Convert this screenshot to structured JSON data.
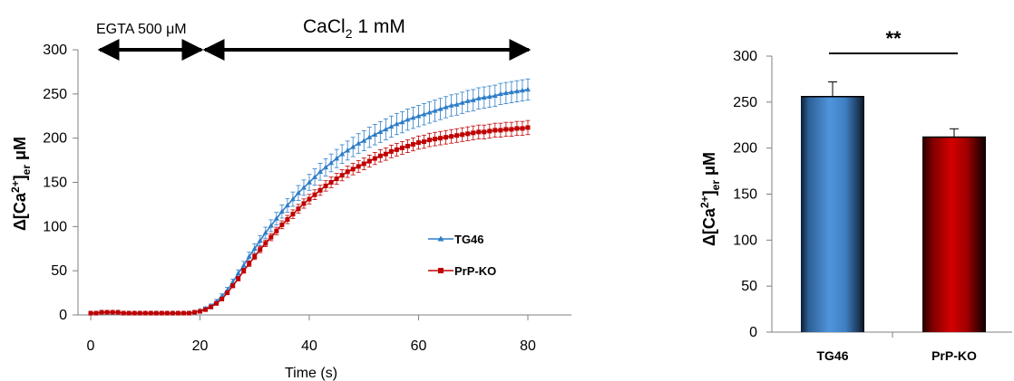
{
  "chart_data": [
    {
      "type": "line",
      "title": "",
      "xlabel": "Time (s)",
      "ylabel": "Δ[Ca²⁺]er μM",
      "ylabel_parts": {
        "main": "Δ[Ca",
        "sup": "2+",
        "close": "]",
        "sub": "er",
        "unit": " μM"
      },
      "xlim": [
        0,
        80
      ],
      "ylim": [
        0,
        300
      ],
      "xticks": [
        "0",
        "20",
        "40",
        "60",
        "80"
      ],
      "yticks": [
        "0",
        "50",
        "100",
        "150",
        "200",
        "250",
        "300"
      ],
      "grid": false,
      "legend_position": "right",
      "annotations": {
        "egta": {
          "label": "EGTA 500 μM",
          "x_range": [
            0,
            20
          ]
        },
        "cacl2": {
          "label_main": "CaCl",
          "label_sub": "2",
          "label_rest": "  1 mM",
          "x_range": [
            20,
            80
          ]
        }
      },
      "series": [
        {
          "name": "TG46",
          "color": "#2E7EC8",
          "marker": "triangle",
          "x": [
            0,
            1,
            2,
            3,
            4,
            5,
            6,
            7,
            8,
            9,
            10,
            11,
            12,
            13,
            14,
            15,
            16,
            17,
            18,
            19,
            20,
            21,
            22,
            23,
            24,
            25,
            26,
            27,
            28,
            29,
            30,
            31,
            32,
            33,
            34,
            35,
            36,
            37,
            38,
            39,
            40,
            41,
            42,
            43,
            44,
            45,
            46,
            47,
            48,
            49,
            50,
            51,
            52,
            53,
            54,
            55,
            56,
            57,
            58,
            59,
            60,
            61,
            62,
            63,
            64,
            65,
            66,
            67,
            68,
            69,
            70,
            71,
            72,
            73,
            74,
            75,
            76,
            77,
            78,
            79,
            80
          ],
          "y": [
            2,
            2,
            3,
            3,
            3,
            3,
            2,
            2,
            2,
            2,
            2,
            2,
            2,
            2,
            2,
            2,
            2,
            2,
            2,
            3,
            5,
            7,
            10,
            15,
            21,
            28,
            37,
            47,
            56,
            66,
            75,
            84,
            93,
            101,
            109,
            117,
            124,
            131,
            138,
            144,
            150,
            156,
            162,
            167,
            172,
            177,
            182,
            186,
            190,
            194,
            197,
            201,
            204,
            207,
            210,
            213,
            216,
            218,
            221,
            223,
            225,
            227,
            229,
            231,
            233,
            235,
            237,
            238,
            240,
            242,
            243,
            245,
            246,
            247,
            248,
            250,
            251,
            252,
            253,
            254,
            255
          ],
          "err": 12
        },
        {
          "name": "PrP-KO",
          "color": "#C00000",
          "marker": "square",
          "x": [
            0,
            1,
            2,
            3,
            4,
            5,
            6,
            7,
            8,
            9,
            10,
            11,
            12,
            13,
            14,
            15,
            16,
            17,
            18,
            19,
            20,
            21,
            22,
            23,
            24,
            25,
            26,
            27,
            28,
            29,
            30,
            31,
            32,
            33,
            34,
            35,
            36,
            37,
            38,
            39,
            40,
            41,
            42,
            43,
            44,
            45,
            46,
            47,
            48,
            49,
            50,
            51,
            52,
            53,
            54,
            55,
            56,
            57,
            58,
            59,
            60,
            61,
            62,
            63,
            64,
            65,
            66,
            67,
            68,
            69,
            70,
            71,
            72,
            73,
            74,
            75,
            76,
            77,
            78,
            79,
            80
          ],
          "y": [
            2,
            2,
            3,
            3,
            3,
            3,
            2,
            2,
            2,
            2,
            2,
            2,
            2,
            2,
            2,
            2,
            2,
            2,
            2,
            3,
            4,
            6,
            9,
            13,
            18,
            25,
            33,
            41,
            50,
            58,
            66,
            74,
            81,
            88,
            95,
            102,
            108,
            114,
            120,
            126,
            131,
            136,
            141,
            146,
            150,
            154,
            158,
            162,
            165,
            168,
            171,
            174,
            177,
            180,
            182,
            185,
            187,
            189,
            191,
            193,
            195,
            196,
            198,
            199,
            200,
            201,
            202,
            203,
            204,
            205,
            206,
            207,
            207,
            208,
            209,
            209,
            210,
            210,
            211,
            211,
            212
          ],
          "err": 8
        }
      ]
    },
    {
      "type": "bar",
      "title": "",
      "ylabel": "Δ[Ca²⁺]er μM",
      "ylabel_parts": {
        "main": "Δ[Ca",
        "sup": "2+",
        "close": "]",
        "sub": "er",
        "unit": " μM"
      },
      "categories": [
        "TG46",
        "PrP-KO"
      ],
      "values": [
        256,
        212
      ],
      "errors": [
        16,
        9
      ],
      "colors": [
        "#4A90D9",
        "#C00000"
      ],
      "ylim": [
        0,
        300
      ],
      "yticks": [
        "0",
        "50",
        "100",
        "150",
        "200",
        "250",
        "300"
      ],
      "grid": false,
      "significance": "**"
    }
  ]
}
